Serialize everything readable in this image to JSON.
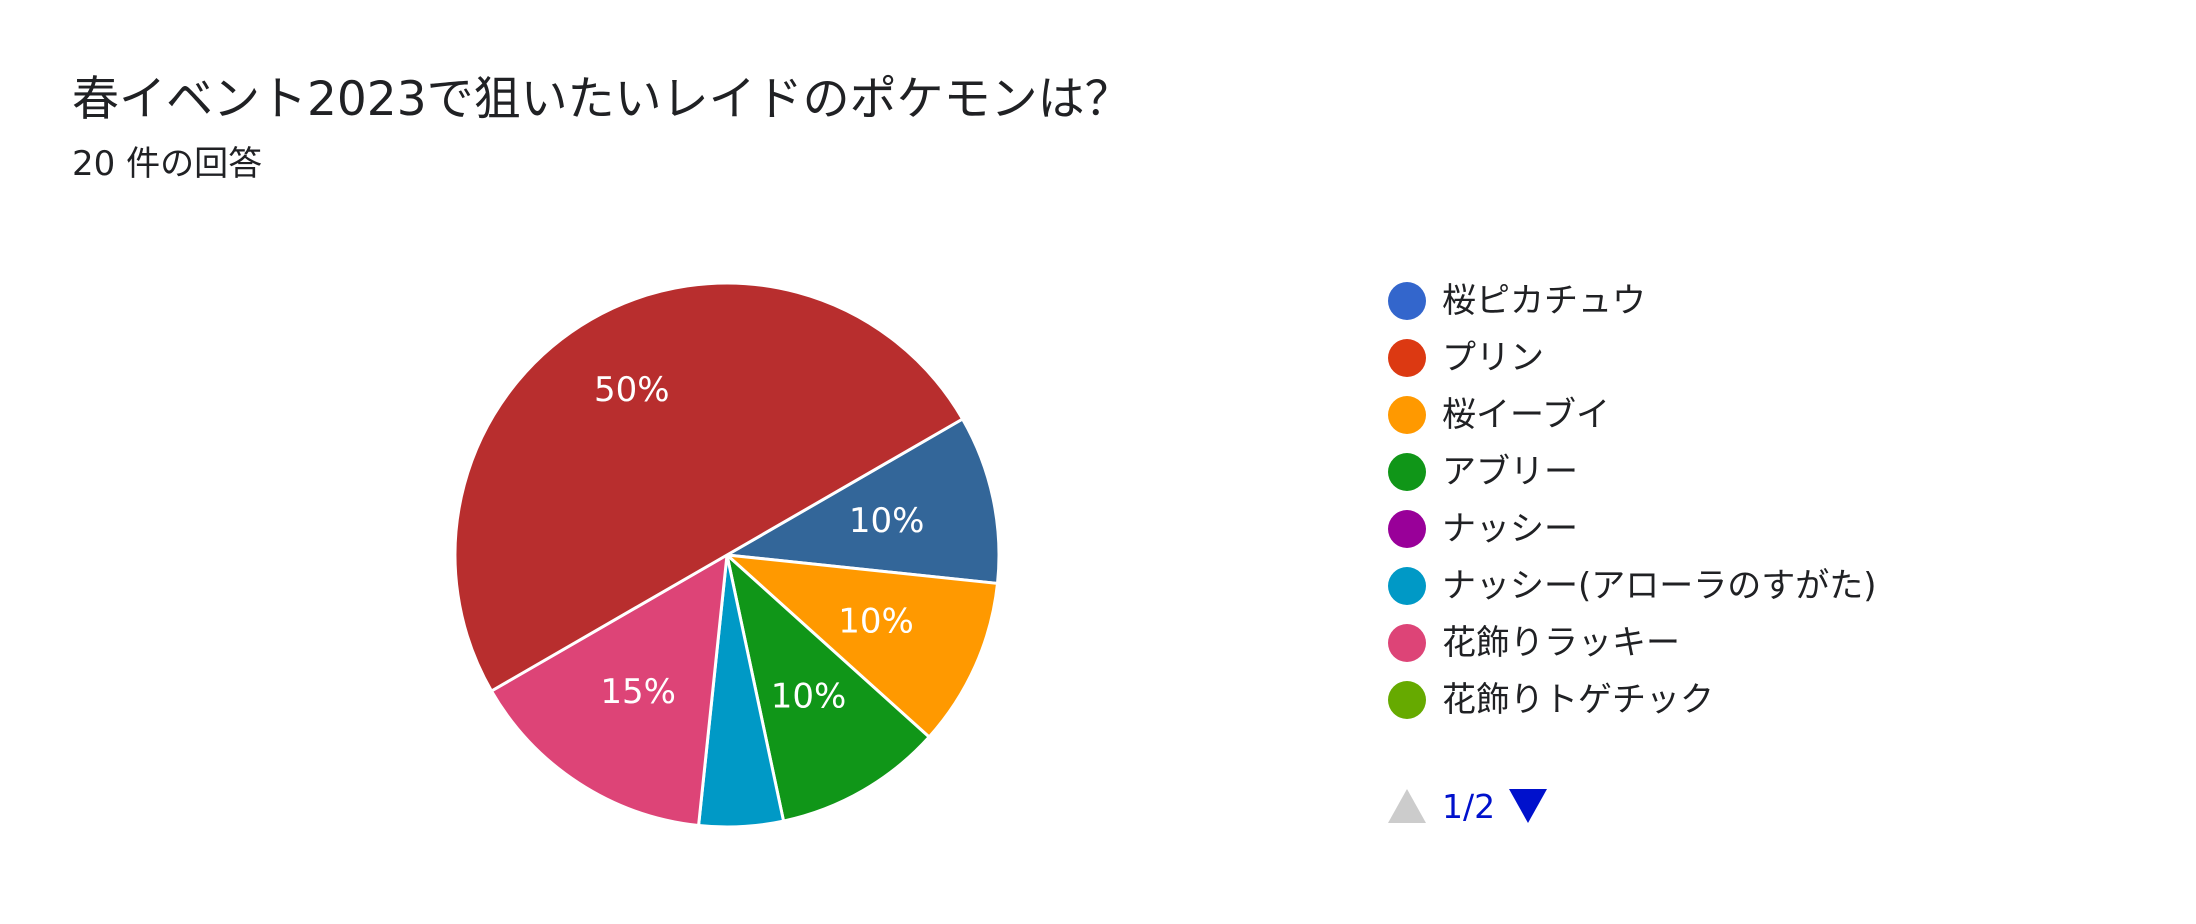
{
  "question": {
    "title": "春イベント2023で狙いたいレイドのポケモンは？",
    "subtitle": "20 件の回答"
  },
  "chart_data": {
    "type": "pie",
    "slices": [
      {
        "label": "桜ピカチュウ",
        "percent": 10,
        "color": "#336699",
        "data_label": "10%"
      },
      {
        "label": "桜イーブイ",
        "percent": 10,
        "color": "#ff9900",
        "data_label": "10%"
      },
      {
        "label": "アブリー",
        "percent": 10,
        "color": "#109618",
        "data_label": "10%"
      },
      {
        "label": "ナッシー(アローラのすがた)",
        "percent": 5,
        "color": "#0099c6",
        "data_label": ""
      },
      {
        "label": "花飾りラッキー",
        "percent": 15,
        "color": "#dd4477",
        "data_label": "15%"
      },
      {
        "label": "プリン",
        "percent": 50,
        "color": "#b82e2e",
        "data_label": "50%"
      }
    ],
    "legend": [
      {
        "label": "桜ピカチュウ",
        "color": "#3366cc"
      },
      {
        "label": "プリン",
        "color": "#dc3912"
      },
      {
        "label": "桜イーブイ",
        "color": "#ff9900"
      },
      {
        "label": "アブリー",
        "color": "#109618"
      },
      {
        "label": "ナッシー",
        "color": "#990099"
      },
      {
        "label": "ナッシー(アローラのすがた)",
        "color": "#0099c6"
      },
      {
        "label": "花飾りラッキー",
        "color": "#dd4477"
      },
      {
        "label": "花飾りトゲチック",
        "color": "#66aa00"
      }
    ],
    "legend_position": "right"
  },
  "pagination": {
    "text": "1/2",
    "prev_icon": "triangle-up-icon",
    "next_icon": "triangle-down-icon"
  }
}
